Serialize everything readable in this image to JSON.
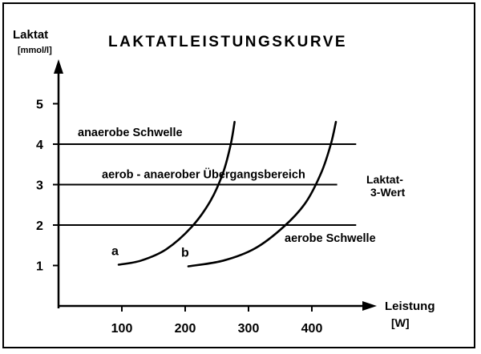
{
  "chart_data": {
    "type": "line",
    "title": "LAKTATLEISTUNGSKURVE",
    "ylabel": "Laktat",
    "yunit": "[mmol/l]",
    "xlabel": "Leistung",
    "xunit": "[W]",
    "xlim": [
      0,
      500
    ],
    "ylim": [
      0,
      6
    ],
    "xticks": [
      "100",
      "200",
      "300",
      "400"
    ],
    "yticks": [
      "1",
      "2",
      "3",
      "4",
      "5"
    ],
    "thresholds": [
      {
        "y": 4,
        "label": "anaerobe Schwelle",
        "x_start": 0,
        "x_end": 470
      },
      {
        "y": 3,
        "label": "aerob - anaerober Übergangsbereich",
        "x_start": 0,
        "x_end": 440
      },
      {
        "y": 2,
        "label": "aerobe Schwelle",
        "x_start": 0,
        "x_end": 470
      }
    ],
    "side_label": [
      "Laktat-",
      "3-Wert"
    ],
    "series": [
      {
        "name": "a",
        "x": [
          95,
          130,
          170,
          210,
          240,
          260,
          272,
          278
        ],
        "y": [
          1.02,
          1.12,
          1.4,
          1.95,
          2.6,
          3.3,
          4.0,
          4.55
        ]
      },
      {
        "name": "b",
        "x": [
          205,
          260,
          310,
          355,
          390,
          415,
          430,
          438
        ],
        "y": [
          0.98,
          1.12,
          1.42,
          1.95,
          2.55,
          3.3,
          4.0,
          4.55
        ]
      }
    ]
  }
}
